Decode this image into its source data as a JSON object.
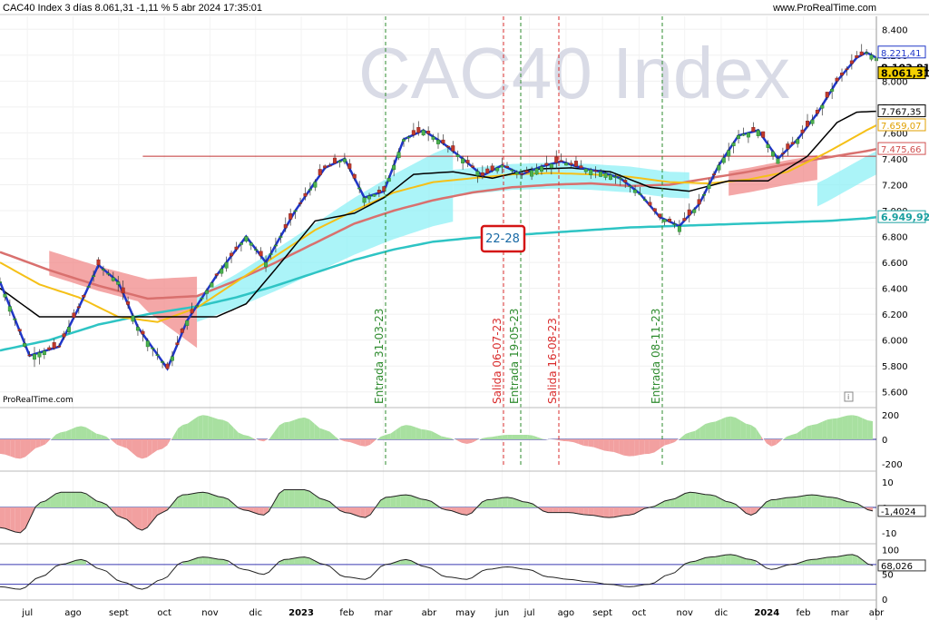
{
  "header": {
    "title": "CAC40 Index 3 días 8.061,31 -1,11 % 5 abr 2024 17:35:01",
    "site": "www.ProRealTime.com"
  },
  "watermark": "CAC40 Index",
  "footer_brand": "ProRealTime.com",
  "colors": {
    "price_line": "#1f36c8",
    "ma_short": "#000000",
    "ma_yellow": "#f5c017",
    "ma_red": "#d9706e",
    "ma_cyan": "#2ec4c4",
    "cloud_bull": "#8ff0f5",
    "cloud_bear": "#f08a8a",
    "resistance": "#c03030",
    "entry": "#2e8b2e",
    "exit": "#d92c2c",
    "osc_pos": "#a8e0a0",
    "osc_neg": "#f2a0a0"
  },
  "chart_data": [
    {
      "type": "candlestick",
      "ylim": [
        5500,
        8500
      ],
      "y_ticks": [
        "8.400",
        "8.200",
        "8.000",
        "7.800",
        "7.600",
        "7.400",
        "7.200",
        "7.000",
        "6.800",
        "6.600",
        "6.400",
        "6.200",
        "6.000",
        "5.800",
        "5.600"
      ],
      "x_ticks": [
        "jul",
        "ago",
        "sept",
        "oct",
        "nov",
        "dic",
        "2023",
        "feb",
        "mar",
        "abr",
        "may",
        "jun",
        "jul",
        "ago",
        "sept",
        "oct",
        "nov",
        "dic",
        "2024",
        "feb",
        "mar",
        "abr"
      ],
      "price_path": [
        [
          0,
          6450
        ],
        [
          3,
          5880
        ],
        [
          6,
          5950
        ],
        [
          8,
          6250
        ],
        [
          10,
          6580
        ],
        [
          12,
          6450
        ],
        [
          14,
          6100
        ],
        [
          17,
          5780
        ],
        [
          19,
          6150
        ],
        [
          22,
          6500
        ],
        [
          25,
          6800
        ],
        [
          27,
          6600
        ],
        [
          30,
          7000
        ],
        [
          33,
          7330
        ],
        [
          35,
          7400
        ],
        [
          37,
          7100
        ],
        [
          39,
          7150
        ],
        [
          41,
          7550
        ],
        [
          43,
          7620
        ],
        [
          45,
          7520
        ],
        [
          47,
          7400
        ],
        [
          49,
          7270
        ],
        [
          51,
          7350
        ],
        [
          53,
          7280
        ],
        [
          55,
          7340
        ],
        [
          57,
          7380
        ],
        [
          59,
          7330
        ],
        [
          61,
          7300
        ],
        [
          63,
          7250
        ],
        [
          65,
          7130
        ],
        [
          67,
          6950
        ],
        [
          69,
          6880
        ],
        [
          71,
          7050
        ],
        [
          73,
          7350
        ],
        [
          75,
          7580
        ],
        [
          77,
          7620
        ],
        [
          79,
          7400
        ],
        [
          81,
          7550
        ],
        [
          83,
          7750
        ],
        [
          85,
          8000
        ],
        [
          87,
          8180
        ],
        [
          88,
          8221
        ],
        [
          89,
          8180
        ]
      ],
      "ma_black": [
        [
          0,
          6400
        ],
        [
          4,
          6180
        ],
        [
          9,
          6180
        ],
        [
          14,
          6180
        ],
        [
          18,
          6180
        ],
        [
          22,
          6180
        ],
        [
          25,
          6280
        ],
        [
          28,
          6550
        ],
        [
          32,
          6920
        ],
        [
          36,
          6980
        ],
        [
          39,
          7100
        ],
        [
          42,
          7280
        ],
        [
          46,
          7300
        ],
        [
          50,
          7250
        ],
        [
          54,
          7320
        ],
        [
          58,
          7330
        ],
        [
          62,
          7300
        ],
        [
          66,
          7180
        ],
        [
          70,
          7150
        ],
        [
          74,
          7230
        ],
        [
          78,
          7230
        ],
        [
          82,
          7420
        ],
        [
          85,
          7680
        ],
        [
          87,
          7760
        ],
        [
          89,
          7767
        ]
      ],
      "ma_yellow": [
        [
          0,
          6600
        ],
        [
          4,
          6430
        ],
        [
          8,
          6330
        ],
        [
          12,
          6180
        ],
        [
          16,
          6140
        ],
        [
          20,
          6250
        ],
        [
          24,
          6450
        ],
        [
          28,
          6650
        ],
        [
          32,
          6850
        ],
        [
          36,
          7000
        ],
        [
          40,
          7140
        ],
        [
          44,
          7220
        ],
        [
          48,
          7250
        ],
        [
          52,
          7280
        ],
        [
          56,
          7290
        ],
        [
          60,
          7280
        ],
        [
          64,
          7260
        ],
        [
          68,
          7220
        ],
        [
          72,
          7210
        ],
        [
          76,
          7240
        ],
        [
          80,
          7300
        ],
        [
          84,
          7450
        ],
        [
          88,
          7620
        ],
        [
          89,
          7659
        ]
      ],
      "ma_red": [
        [
          0,
          6680
        ],
        [
          5,
          6540
        ],
        [
          10,
          6420
        ],
        [
          15,
          6320
        ],
        [
          20,
          6340
        ],
        [
          24,
          6460
        ],
        [
          28,
          6600
        ],
        [
          32,
          6750
        ],
        [
          36,
          6900
        ],
        [
          40,
          7000
        ],
        [
          44,
          7080
        ],
        [
          48,
          7140
        ],
        [
          52,
          7180
        ],
        [
          56,
          7200
        ],
        [
          60,
          7210
        ],
        [
          64,
          7190
        ],
        [
          68,
          7200
        ],
        [
          72,
          7250
        ],
        [
          76,
          7300
        ],
        [
          80,
          7360
        ],
        [
          84,
          7410
        ],
        [
          88,
          7460
        ],
        [
          89,
          7475
        ]
      ],
      "ma_cyan": [
        [
          0,
          5920
        ],
        [
          5,
          6000
        ],
        [
          10,
          6120
        ],
        [
          15,
          6200
        ],
        [
          20,
          6260
        ],
        [
          24,
          6330
        ],
        [
          28,
          6420
        ],
        [
          32,
          6520
        ],
        [
          36,
          6620
        ],
        [
          40,
          6700
        ],
        [
          44,
          6760
        ],
        [
          48,
          6790
        ],
        [
          52,
          6810
        ],
        [
          56,
          6830
        ],
        [
          60,
          6850
        ],
        [
          64,
          6870
        ],
        [
          68,
          6880
        ],
        [
          72,
          6890
        ],
        [
          76,
          6900
        ],
        [
          80,
          6910
        ],
        [
          84,
          6920
        ],
        [
          88,
          6940
        ],
        [
          89,
          6949
        ]
      ],
      "resistance_level": 7420,
      "value_labels": [
        "8.221,41",
        "8.103,81",
        "8.061,31",
        "7.767,35",
        "7.659,07",
        "7.475,66",
        "6.949,92"
      ],
      "annotation_box": "22-28",
      "vlines": [
        {
          "label": "Entrada 31-03-23",
          "kind": "entry"
        },
        {
          "label": "Salida 06-07-23",
          "kind": "exit"
        },
        {
          "label": "Entrada 19-05-23",
          "kind": "entry"
        },
        {
          "label": "Salida 16-08-23",
          "kind": "exit"
        },
        {
          "label": "Entrada 08-11-23",
          "kind": "entry"
        }
      ]
    },
    {
      "type": "area",
      "name_panel": "oscillator-1",
      "y_ticks": [
        "200",
        "0",
        "-200"
      ],
      "ylim": [
        -250,
        250
      ],
      "values": [
        -120,
        -160,
        -60,
        60,
        110,
        40,
        -60,
        -160,
        -80,
        120,
        200,
        160,
        40,
        -20,
        140,
        180,
        80,
        -20,
        -60,
        40,
        120,
        80,
        20,
        -40,
        20,
        40,
        40,
        0,
        -20,
        -60,
        -100,
        -140,
        -120,
        -40,
        60,
        140,
        190,
        120,
        -60,
        40,
        120,
        170,
        200,
        150
      ]
    },
    {
      "type": "area",
      "name_panel": "oscillator-2",
      "y_ticks": [
        "10",
        "0",
        "-10"
      ],
      "ylim": [
        -14,
        14
      ],
      "last_value": "-1,4024",
      "values": [
        -8,
        -10,
        2,
        6,
        6,
        2,
        -4,
        -9,
        -2,
        5,
        6,
        4,
        -1,
        -3,
        7,
        7,
        3,
        -2,
        -4,
        4,
        5,
        3,
        -1,
        -3,
        3,
        4,
        2,
        -2,
        -2,
        -3,
        -4,
        -3,
        0,
        3,
        6,
        5,
        2,
        -3,
        3,
        4,
        5,
        4,
        2,
        -1.4
      ]
    },
    {
      "type": "line",
      "name_panel": "oscillator-3",
      "y_ticks": [
        "100",
        "50",
        "0"
      ],
      "ylim": [
        0,
        110
      ],
      "last_value": "68,026",
      "bands": [
        70,
        30
      ],
      "values": [
        25,
        20,
        45,
        70,
        80,
        60,
        35,
        20,
        40,
        75,
        85,
        80,
        60,
        50,
        80,
        85,
        70,
        45,
        40,
        70,
        80,
        65,
        45,
        40,
        60,
        65,
        60,
        45,
        40,
        35,
        30,
        25,
        30,
        50,
        75,
        85,
        90,
        80,
        60,
        70,
        80,
        85,
        90,
        68
      ]
    }
  ]
}
